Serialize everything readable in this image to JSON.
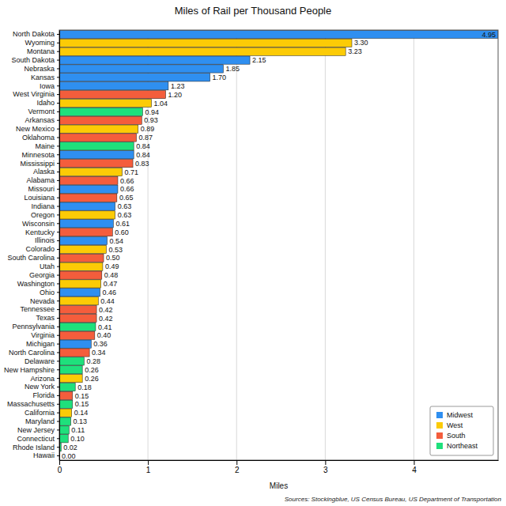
{
  "chart_data": {
    "type": "bar",
    "orientation": "horizontal",
    "title": "Miles of Rail per Thousand People",
    "x_label": "Miles",
    "source": "Sources: Stockingblue, US Census Bureau, US Department of Transportation",
    "categories": [
      "North Dakota",
      "Wyoming",
      "Montana",
      "South Dakota",
      "Nebraska",
      "Kansas",
      "Iowa",
      "West Virginia",
      "Idaho",
      "Vermont",
      "Arkansas",
      "New Mexico",
      "Oklahoma",
      "Maine",
      "Minnesota",
      "Mississippi",
      "Alaska",
      "Alabama",
      "Missouri",
      "Louisiana",
      "Indiana",
      "Oregon",
      "Wisconsin",
      "Kentucky",
      "Illinois",
      "Colorado",
      "South Carolina",
      "Utah",
      "Georgia",
      "Washington",
      "Ohio",
      "Nevada",
      "Tennessee",
      "Texas",
      "Pennsylvania",
      "Virginia",
      "Michigan",
      "North Carolina",
      "Delaware",
      "New Hampshire",
      "Arizona",
      "New York",
      "Florida",
      "Massachusetts",
      "California",
      "Maryland",
      "New Jersey",
      "Connecticut",
      "Rhode Island",
      "Hawaii"
    ],
    "series": [
      {
        "name": "Midwest",
        "color": "#2f8ff0",
        "values": [
          4.95,
          null,
          null,
          2.15,
          1.85,
          1.7,
          1.23,
          null,
          null,
          null,
          null,
          null,
          null,
          null,
          0.84,
          null,
          null,
          null,
          0.66,
          null,
          0.63,
          null,
          0.61,
          null,
          0.54,
          null,
          null,
          null,
          null,
          null,
          0.46,
          null,
          null,
          null,
          null,
          null,
          0.36,
          null,
          null,
          null,
          null,
          null,
          null,
          null,
          null,
          null,
          null,
          null,
          null,
          null
        ],
        "value_labels": [
          "4.95",
          null,
          null,
          "2.15",
          "1.85",
          "1.70",
          "1.23",
          null,
          null,
          null,
          null,
          null,
          null,
          null,
          "0.84",
          null,
          null,
          null,
          "0.66",
          null,
          "0.63",
          null,
          "0.61",
          null,
          "0.54",
          null,
          null,
          null,
          null,
          null,
          "0.46",
          null,
          null,
          null,
          null,
          null,
          "0.36",
          null,
          null,
          null,
          null,
          null,
          null,
          null,
          null,
          null,
          null,
          null,
          null,
          null
        ]
      },
      {
        "name": "West",
        "color": "#fccb06",
        "values": [
          null,
          3.3,
          3.23,
          null,
          null,
          null,
          null,
          null,
          1.04,
          null,
          null,
          0.89,
          null,
          null,
          null,
          null,
          0.71,
          null,
          null,
          null,
          null,
          0.63,
          null,
          null,
          null,
          0.53,
          null,
          0.49,
          null,
          0.47,
          null,
          0.44,
          null,
          null,
          null,
          null,
          null,
          null,
          null,
          null,
          0.26,
          null,
          null,
          null,
          0.14,
          null,
          null,
          null,
          null,
          0
        ],
        "value_labels": [
          null,
          "3.30",
          "3.23",
          null,
          null,
          null,
          null,
          null,
          "1.04",
          null,
          null,
          "0.89",
          null,
          null,
          null,
          null,
          "0.71",
          null,
          null,
          null,
          null,
          "0.63",
          null,
          null,
          null,
          "0.53",
          null,
          "0.49",
          null,
          "0.47",
          null,
          "0.44",
          null,
          null,
          null,
          null,
          null,
          null,
          null,
          null,
          "0.26",
          null,
          null,
          null,
          "0.14",
          null,
          null,
          null,
          null,
          "0.00"
        ]
      },
      {
        "name": "South",
        "color": "#f45d3c",
        "values": [
          null,
          null,
          null,
          null,
          null,
          null,
          null,
          1.2,
          null,
          null,
          0.93,
          null,
          0.87,
          null,
          null,
          0.83,
          null,
          0.66,
          null,
          0.65,
          null,
          null,
          null,
          0.6,
          null,
          null,
          0.5,
          null,
          0.48,
          null,
          null,
          null,
          0.42,
          0.42,
          null,
          0.4,
          null,
          0.34,
          null,
          null,
          null,
          null,
          0.15,
          null,
          null,
          null,
          null,
          null,
          null,
          null
        ],
        "value_labels": [
          null,
          null,
          null,
          null,
          null,
          null,
          null,
          "1.20",
          null,
          null,
          "0.93",
          null,
          "0.87",
          null,
          null,
          "0.83",
          null,
          "0.66",
          null,
          "0.65",
          null,
          null,
          null,
          "0.60",
          null,
          null,
          "0.50",
          null,
          "0.48",
          null,
          null,
          null,
          "0.42",
          "0.42",
          null,
          "0.40",
          null,
          "0.34",
          null,
          null,
          null,
          null,
          "0.15",
          null,
          null,
          null,
          null,
          null,
          null,
          null
        ]
      },
      {
        "name": "Northeast",
        "color": "#1fe07c",
        "values": [
          null,
          null,
          null,
          null,
          null,
          null,
          null,
          null,
          null,
          0.94,
          null,
          null,
          null,
          0.84,
          null,
          null,
          null,
          null,
          null,
          null,
          null,
          null,
          null,
          null,
          null,
          null,
          null,
          null,
          null,
          null,
          null,
          null,
          null,
          null,
          0.41,
          null,
          null,
          null,
          0.28,
          0.26,
          null,
          0.18,
          null,
          0.15,
          null,
          0.13,
          0.11,
          0.1,
          0.02,
          null
        ],
        "value_labels": [
          null,
          null,
          null,
          null,
          null,
          null,
          null,
          null,
          null,
          "0.94",
          null,
          null,
          null,
          "0.84",
          null,
          null,
          null,
          null,
          null,
          null,
          null,
          null,
          null,
          null,
          null,
          null,
          null,
          null,
          null,
          null,
          null,
          null,
          null,
          null,
          "0.41",
          null,
          null,
          null,
          "0.28",
          "0.26",
          null,
          "0.18",
          null,
          "0.15",
          null,
          "0.13",
          "0.11",
          "0.10",
          "0.02",
          null
        ]
      }
    ],
    "xlim": [
      0,
      4.95
    ],
    "xticks": [
      0,
      1,
      2,
      3,
      4
    ],
    "grid": true,
    "legend": "bottom-right",
    "data_labels": true
  }
}
